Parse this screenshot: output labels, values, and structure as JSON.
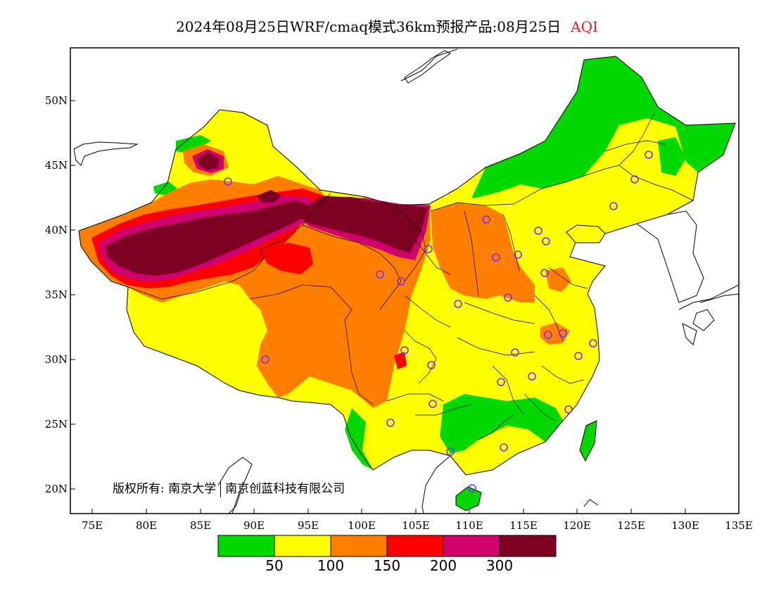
{
  "title": {
    "text": "2024年08月25日WRF/cmaq模式36km预报产品:08月25日",
    "variable": "AQI",
    "variable_color": "#e0202a"
  },
  "axes": {
    "y_ticks": [
      "50N",
      "45N",
      "40N",
      "35N",
      "30N",
      "25N",
      "20N"
    ],
    "x_ticks": [
      "75E",
      "80E",
      "85E",
      "90E",
      "95E",
      "100E",
      "105E",
      "110E",
      "115E",
      "120E",
      "125E",
      "130E",
      "135E"
    ]
  },
  "colorbar": {
    "thresholds": [
      "50",
      "100",
      "150",
      "200",
      "300"
    ],
    "colors": [
      "#00d800",
      "#ffff00",
      "#ff7e00",
      "#ff0000",
      "#d0006c",
      "#7e0023"
    ]
  },
  "copyright": {
    "label": "版权所有:",
    "org1": "南京大学",
    "org2": "南京创蓝科技有限公司"
  },
  "map_colors": {
    "good": "#00d800",
    "moderate": "#ffff00",
    "usg": "#ff7e00",
    "unhealthy": "#ff0000",
    "very_unhealthy": "#d0006c",
    "hazardous": "#7e0023",
    "station_marker": "#7a2cff"
  }
}
